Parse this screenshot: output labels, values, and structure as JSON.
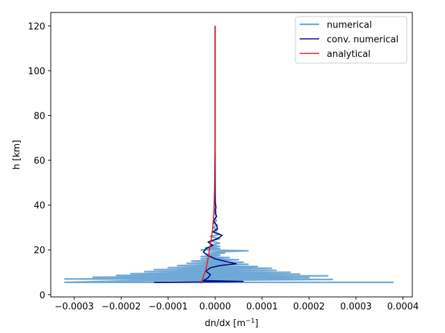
{
  "chart_data": {
    "type": "line",
    "title": "",
    "xlabel": "dn/dx [m",
    "xlabel_sup": "−1",
    "xlabel_end": "]",
    "ylabel": "h [km]",
    "xlim": [
      -0.00035,
      0.00042
    ],
    "ylim": [
      -1,
      126
    ],
    "x_ticks": [
      -0.0003,
      -0.0002,
      -0.0001,
      0.0,
      0.0001,
      0.0002,
      0.0003,
      0.0004
    ],
    "x_tick_labels": [
      "−0.0003",
      "−0.0002",
      "−0.0001",
      "0.0000",
      "0.0001",
      "0.0002",
      "0.0003",
      "0.0004"
    ],
    "y_ticks": [
      0,
      20,
      40,
      60,
      80,
      100,
      120
    ],
    "y_tick_labels": [
      "0",
      "20",
      "40",
      "60",
      "80",
      "100",
      "120"
    ],
    "grid": false,
    "legend_position": "top-right",
    "series": [
      {
        "name": "numerical",
        "color": "#6fa8d6",
        "stroke_width": 2.2,
        "points": [
          [
            0.00038,
            5.5
          ],
          [
            -0.00032,
            5.5
          ],
          [
            -0.00018,
            6.2
          ],
          [
            0.00025,
            6.8
          ],
          [
            -0.00032,
            7.0
          ],
          [
            0.0002,
            7.6
          ],
          [
            -0.00026,
            7.8
          ],
          [
            0.00024,
            8.4
          ],
          [
            -0.00021,
            8.6
          ],
          [
            0.00018,
            9.2
          ],
          [
            -0.00018,
            9.4
          ],
          [
            0.00016,
            10.0
          ],
          [
            -0.00015,
            10.3
          ],
          [
            0.00013,
            10.9
          ],
          [
            -0.00013,
            11.2
          ],
          [
            0.00012,
            11.8
          ],
          [
            -0.0001,
            12.1
          ],
          [
            9e-05,
            12.6
          ],
          [
            -8e-05,
            13.0
          ],
          [
            7e-05,
            13.6
          ],
          [
            -6e-05,
            14.0
          ],
          [
            6e-05,
            14.5
          ],
          [
            -5e-05,
            15.0
          ],
          [
            5e-05,
            15.6
          ],
          [
            -3e-05,
            16.0
          ],
          [
            3e-05,
            16.6
          ],
          [
            -3e-05,
            17.0
          ],
          [
            1e-05,
            17.6
          ],
          [
            -2e-05,
            18.0
          ],
          [
            2e-05,
            18.6
          ],
          [
            -1e-05,
            19.0
          ],
          [
            7e-05,
            19.6
          ],
          [
            -3e-05,
            20.0
          ],
          [
            1e-05,
            20.6
          ],
          [
            -2e-05,
            21.0
          ],
          [
            1e-05,
            21.6
          ],
          [
            -1e-05,
            22.2
          ],
          [
            1e-05,
            23.0
          ],
          [
            -1e-05,
            24.0
          ],
          [
            1e-05,
            25.0
          ],
          [
            -1e-05,
            26.0
          ],
          [
            1e-05,
            27.0
          ],
          [
            0.0,
            28.0
          ],
          [
            5e-06,
            29.0
          ],
          [
            -5e-06,
            30.0
          ],
          [
            5e-06,
            31.0
          ],
          [
            -5e-06,
            32.0
          ],
          [
            3e-06,
            33.0
          ],
          [
            0.0,
            34.0
          ],
          [
            3e-06,
            35.0
          ],
          [
            0.0,
            36.0
          ],
          [
            2e-06,
            37.0
          ],
          [
            0.0,
            38.0
          ],
          [
            1e-06,
            40.0
          ],
          [
            0.0,
            45.0
          ],
          [
            0.0,
            60.0
          ],
          [
            0.0,
            80.0
          ],
          [
            0.0,
            100.0
          ],
          [
            0.0,
            120.0
          ]
        ]
      },
      {
        "name": "conv. numerical",
        "color": "#00007f",
        "stroke_width": 1.6,
        "points": [
          [
            -0.00013,
            5.5
          ],
          [
            6e-05,
            5.9
          ],
          [
            -2.5e-05,
            6.3
          ],
          [
            -1.5e-05,
            7.5
          ],
          [
            -1e-05,
            9.0
          ],
          [
            -2e-05,
            10.5
          ],
          [
            -1e-05,
            12.0
          ],
          [
            1e-05,
            13.0
          ],
          [
            4.5e-05,
            13.8
          ],
          [
            2e-05,
            15.0
          ],
          [
            0.0,
            16.0
          ],
          [
            -1.5e-05,
            17.5
          ],
          [
            -2.5e-05,
            19.0
          ],
          [
            -2e-05,
            20.5
          ],
          [
            -5e-06,
            22.0
          ],
          [
            -1.5e-05,
            23.5
          ],
          [
            5e-06,
            25.0
          ],
          [
            1.5e-05,
            26.5
          ],
          [
            -5e-06,
            28.0
          ],
          [
            5e-06,
            29.5
          ],
          [
            3e-06,
            31.0
          ],
          [
            -3e-06,
            33.0
          ],
          [
            3e-06,
            35.0
          ],
          [
            0.0,
            37.0
          ],
          [
            2e-06,
            39.0
          ],
          [
            0.0,
            41.0
          ],
          [
            0.0,
            60.0
          ],
          [
            0.0,
            80.0
          ],
          [
            0.0,
            100.0
          ],
          [
            0.0,
            120.0
          ]
        ]
      },
      {
        "name": "analytical",
        "color": "#e8201b",
        "stroke_width": 1.6,
        "points": [
          [
            -3e-05,
            5.0
          ],
          [
            -2.5e-05,
            8.0
          ],
          [
            -2e-05,
            11.0
          ],
          [
            -1.6e-05,
            15.0
          ],
          [
            -1.2e-05,
            20.0
          ],
          [
            -8e-06,
            25.0
          ],
          [
            -5e-06,
            30.0
          ],
          [
            -3e-06,
            35.0
          ],
          [
            -2e-06,
            40.0
          ],
          [
            -1e-06,
            50.0
          ],
          [
            0.0,
            70.0
          ],
          [
            0.0,
            90.0
          ],
          [
            0.0,
            120.0
          ]
        ]
      }
    ]
  }
}
